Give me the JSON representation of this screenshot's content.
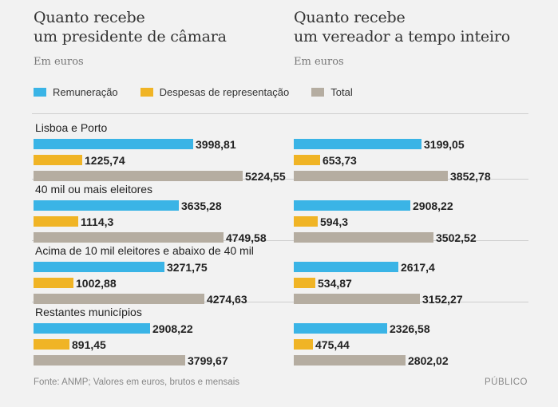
{
  "panels": [
    {
      "title_line1": "Quanto recebe",
      "title_line2": "um presidente de câmara",
      "subtitle": "Em euros"
    },
    {
      "title_line1": "Quanto recebe",
      "title_line2": "um vereador a tempo inteiro",
      "subtitle": "Em euros"
    }
  ],
  "legend": [
    {
      "label": "Remuneração",
      "color": "#3ab4e6"
    },
    {
      "label": "Despesas de representação",
      "color": "#f0b425"
    },
    {
      "label": "Total",
      "color": "#b5ada1"
    }
  ],
  "groups": [
    "Lisboa e Porto",
    "40 mil ou mais eleitores",
    "Acima de 10 mil eleitores e abaixo de 40 mil",
    "Restantes municípios"
  ],
  "footer": {
    "source": "Fonte: ANMP; Valores em euros, brutos e mensais",
    "brand": "PÚBLICO"
  },
  "chart_data": [
    {
      "type": "bar",
      "title": "Quanto recebe um presidente de câmara",
      "subtitle": "Em euros",
      "categories": [
        "Lisboa e Porto",
        "40 mil ou mais eleitores",
        "Acima de 10 mil eleitores e abaixo de 40 mil",
        "Restantes municípios"
      ],
      "series": [
        {
          "name": "Remuneração",
          "values": [
            3998.81,
            3635.28,
            3271.75,
            2908.22
          ],
          "labels": [
            "3998,81",
            "3635,28",
            "3271,75",
            "2908,22"
          ]
        },
        {
          "name": "Despesas de representação",
          "values": [
            1225.74,
            1114.3,
            1002.88,
            891.45
          ],
          "labels": [
            "1225,74",
            "1114,3",
            "1002,88",
            "891,45"
          ]
        },
        {
          "name": "Total",
          "values": [
            5224.55,
            4749.58,
            4274.63,
            3799.67
          ],
          "labels": [
            "5224,55",
            "4749,58",
            "4274,63",
            "3799,67"
          ]
        }
      ]
    },
    {
      "type": "bar",
      "title": "Quanto recebe um vereador a tempo inteiro",
      "subtitle": "Em euros",
      "categories": [
        "Lisboa e Porto",
        "40 mil ou mais eleitores",
        "Acima de 10 mil eleitores e abaixo de 40 mil",
        "Restantes municípios"
      ],
      "series": [
        {
          "name": "Remuneração",
          "values": [
            3199.05,
            2908.22,
            2617.4,
            2326.58
          ],
          "labels": [
            "3199,05",
            "2908,22",
            "2617,4",
            "2326,58"
          ]
        },
        {
          "name": "Despesas de representação",
          "values": [
            653.73,
            594.3,
            534.87,
            475.44
          ],
          "labels": [
            "653,73",
            "594,3",
            "534,87",
            "475,44"
          ]
        },
        {
          "name": "Total",
          "values": [
            3852.78,
            3502.52,
            3152.27,
            2802.02
          ],
          "labels": [
            "3852,78",
            "3502,52",
            "3152,27",
            "2802,02"
          ]
        }
      ]
    }
  ]
}
